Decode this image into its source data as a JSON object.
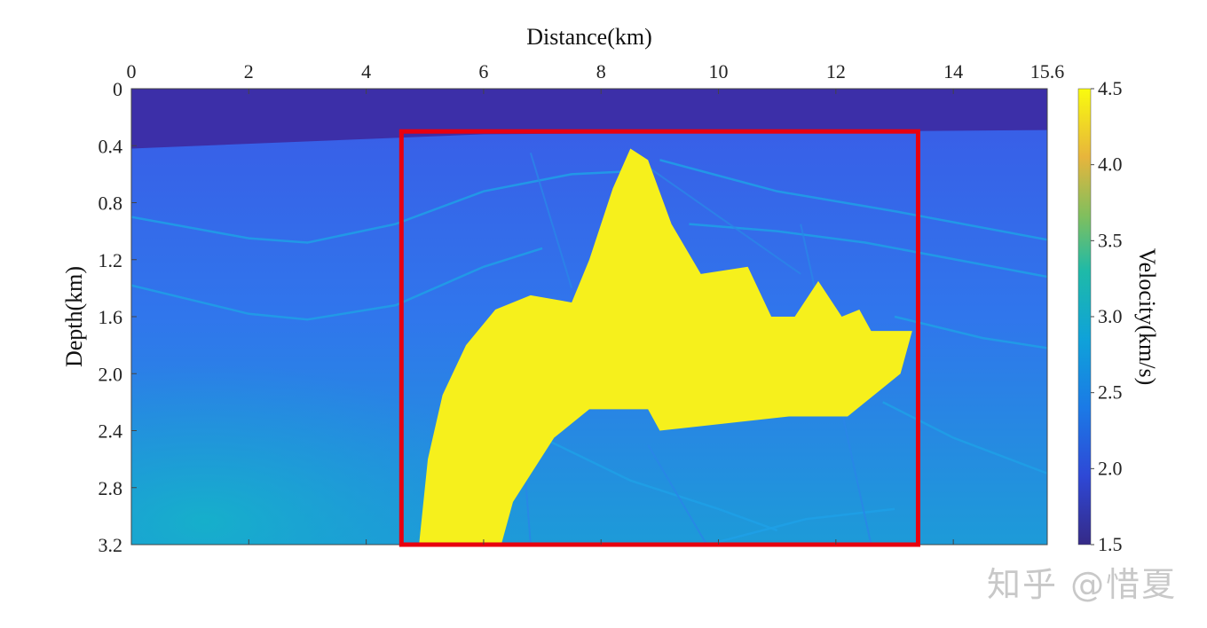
{
  "chart_data": {
    "type": "heatmap",
    "xlabel": "Distance(km)",
    "ylabel": "Depth(km)",
    "colorbar_label": "Velocity(km/s)",
    "xlim": [
      0,
      15.6
    ],
    "ylim": [
      0,
      3.2
    ],
    "x_ticks": [
      "0",
      "2",
      "4",
      "6",
      "8",
      "10",
      "12",
      "14",
      "15.6"
    ],
    "x_tick_values": [
      0,
      2,
      4,
      6,
      8,
      10,
      12,
      14,
      15.6
    ],
    "y_ticks": [
      "0",
      "0.4",
      "0.8",
      "1.2",
      "1.6",
      "2.0",
      "2.4",
      "2.8",
      "3.2"
    ],
    "y_tick_values": [
      0,
      0.4,
      0.8,
      1.2,
      1.6,
      2.0,
      2.4,
      2.8,
      3.2
    ],
    "colorbar_range": [
      1.5,
      4.5
    ],
    "colorbar_ticks": [
      "1.5",
      "2.0",
      "2.5",
      "3.0",
      "3.5",
      "4.0",
      "4.5"
    ],
    "colorbar_tick_values": [
      1.5,
      2.0,
      2.5,
      3.0,
      3.5,
      4.0,
      4.5
    ],
    "colormap": "parula",
    "water_layer": {
      "velocity": 1.5,
      "depth_left": 0.42,
      "depth_right": 0.29
    },
    "salt_body": {
      "velocity": 4.5,
      "outline": [
        [
          4.9,
          3.2
        ],
        [
          5.05,
          2.6
        ],
        [
          5.3,
          2.15
        ],
        [
          5.7,
          1.8
        ],
        [
          6.2,
          1.55
        ],
        [
          6.8,
          1.45
        ],
        [
          7.5,
          1.5
        ],
        [
          7.8,
          1.2
        ],
        [
          8.2,
          0.7
        ],
        [
          8.5,
          0.42
        ],
        [
          8.8,
          0.5
        ],
        [
          9.2,
          0.95
        ],
        [
          9.7,
          1.3
        ],
        [
          10.5,
          1.25
        ],
        [
          10.9,
          1.6
        ],
        [
          11.3,
          1.6
        ],
        [
          11.7,
          1.35
        ],
        [
          12.1,
          1.6
        ],
        [
          12.4,
          1.55
        ],
        [
          12.6,
          1.7
        ],
        [
          13.3,
          1.7
        ],
        [
          13.1,
          2.0
        ],
        [
          12.8,
          2.1
        ],
        [
          12.2,
          2.3
        ],
        [
          11.2,
          2.3
        ],
        [
          9.0,
          2.4
        ],
        [
          8.8,
          2.25
        ],
        [
          7.8,
          2.25
        ],
        [
          7.2,
          2.45
        ],
        [
          6.5,
          2.9
        ],
        [
          6.3,
          3.2
        ]
      ]
    },
    "highlight_box": {
      "x": [
        4.6,
        13.4
      ],
      "y": [
        0.3,
        3.2
      ],
      "color": "#e8000f"
    }
  },
  "watermark": "知乎 @惜夏"
}
